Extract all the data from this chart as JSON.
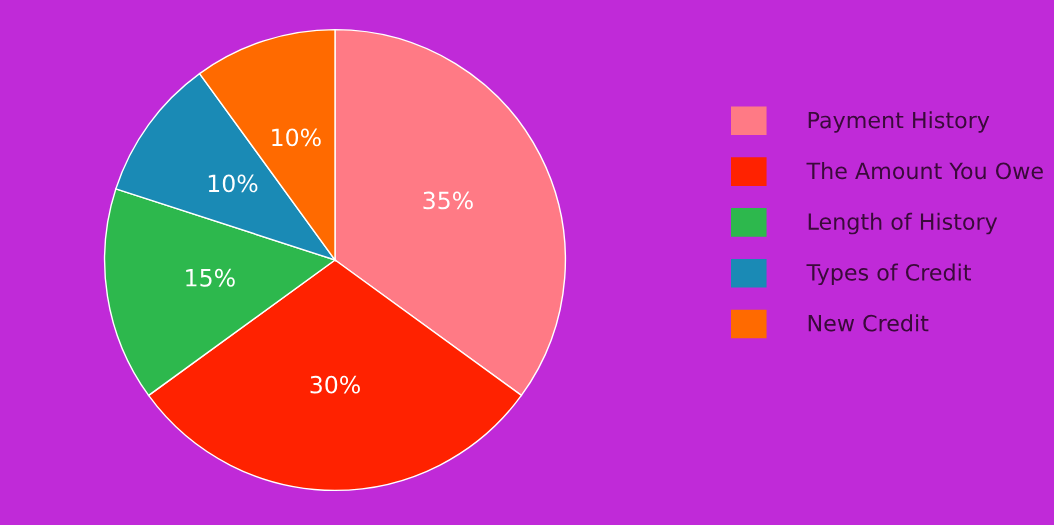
{
  "chart_data": {
    "type": "pie",
    "categories": [
      "Payment History",
      "The Amount You Owe",
      "Length of History",
      "Types of Credit",
      "New Credit"
    ],
    "values": [
      35,
      30,
      15,
      10,
      10
    ],
    "colors": [
      "#ff7a85",
      "#ff2200",
      "#2db84d",
      "#1a8ab5",
      "#ff6a00"
    ],
    "value_labels": [
      "35%",
      "30%",
      "15%",
      "10%",
      "10%"
    ],
    "legend": "right"
  }
}
